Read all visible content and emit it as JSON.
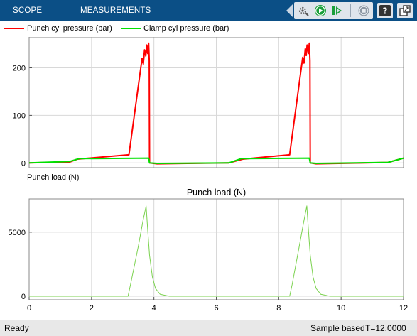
{
  "toolbar": {
    "tabs": [
      {
        "label": "SCOPE"
      },
      {
        "label": "MEASUREMENTS"
      }
    ],
    "buttons": [
      {
        "icon": "settings-gear-icon"
      },
      {
        "icon": "run-icon"
      },
      {
        "icon": "step-forward-icon"
      },
      {
        "icon": "stop-icon"
      },
      {
        "icon": "help-icon"
      },
      {
        "icon": "undock-icon"
      }
    ],
    "colors": {
      "background": "#0b4f86",
      "run": "#1a9f3a",
      "stop": "#8c97a3"
    }
  },
  "legend_top": {
    "items": [
      {
        "label": "Punch cyl pressure (bar)",
        "color": "#ff0000"
      },
      {
        "label": "Clamp cyl pressure (bar)",
        "color": "#00e000"
      }
    ]
  },
  "legend_bottom": {
    "items": [
      {
        "label": "Punch load (N)",
        "color": "#7bd24f"
      }
    ]
  },
  "chart_data": [
    {
      "type": "line",
      "title": "",
      "xlim": [
        0,
        12
      ],
      "ylim": [
        -10,
        265
      ],
      "yticks": [
        0,
        100,
        200
      ],
      "grid": true,
      "series": [
        {
          "name": "Punch cyl pressure (bar)",
          "color": "#ff0000",
          "x": [
            0,
            1.3,
            1.55,
            3.2,
            3.62,
            3.66,
            3.7,
            3.74,
            3.77,
            3.8,
            3.83,
            3.85,
            3.86,
            4.1,
            6.4,
            6.85,
            8.35,
            8.77,
            8.81,
            8.85,
            8.88,
            8.91,
            8.95,
            8.98,
            9.0,
            9.01,
            9.2,
            11.5,
            12
          ],
          "y": [
            0,
            2,
            8,
            17,
            220,
            208,
            238,
            225,
            248,
            230,
            252,
            215,
            0,
            -2,
            0,
            8,
            17,
            222,
            210,
            240,
            226,
            248,
            230,
            252,
            215,
            0,
            -2,
            1,
            10
          ]
        },
        {
          "name": "Clamp cyl pressure (bar)",
          "color": "#00e000",
          "x": [
            0,
            1.3,
            1.6,
            3.83,
            3.86,
            4.1,
            6.4,
            6.8,
            8.98,
            9.01,
            9.2,
            11.5,
            12
          ],
          "y": [
            0,
            3,
            9,
            10,
            0,
            -1,
            0,
            9,
            10,
            0,
            -1,
            1,
            10
          ]
        }
      ]
    },
    {
      "type": "line",
      "title": "Punch load (N)",
      "xlim": [
        0,
        12
      ],
      "ylim": [
        -280,
        7600
      ],
      "xticks": [
        0,
        2,
        4,
        6,
        8,
        10,
        12
      ],
      "yticks": [
        0,
        5000
      ],
      "grid": true,
      "series": [
        {
          "color": "#7bd24f",
          "x": [
            0,
            3.17,
            3.25,
            3.5,
            3.65,
            3.75,
            3.8,
            3.86,
            3.95,
            4.05,
            4.2,
            4.5,
            8.35,
            8.43,
            8.65,
            8.8,
            8.9,
            8.95,
            9.01,
            9.1,
            9.2,
            9.35,
            9.65,
            12
          ],
          "y": [
            0,
            0,
            900,
            3900,
            5900,
            7050,
            5200,
            3200,
            1500,
            600,
            150,
            0,
            0,
            900,
            3800,
            5800,
            7050,
            5200,
            3200,
            1500,
            600,
            150,
            0,
            0
          ]
        }
      ]
    }
  ],
  "status": {
    "state": "Ready",
    "mode": "Sample based",
    "time": "T=12.0000"
  }
}
